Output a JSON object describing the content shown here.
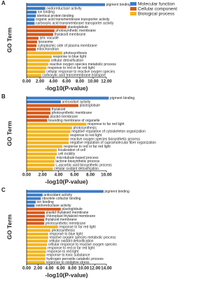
{
  "chart_data": [
    {
      "type": "bar",
      "panel": "A",
      "xlabel": "-log10(P-value)",
      "ylabel": "GO Term",
      "xlim": [
        0,
        12
      ],
      "xticks": [
        {
          "value": 0,
          "label": "0.00"
        },
        {
          "value": 2,
          "label": "2.00"
        },
        {
          "value": 4,
          "label": "4.00"
        },
        {
          "value": 6,
          "label": "6.00"
        },
        {
          "value": 8,
          "label": "8.00"
        },
        {
          "value": 10,
          "label": "10.00"
        },
        {
          "value": 12,
          "label": "12.00"
        }
      ],
      "legend": "top-right",
      "series": [
        {
          "name": "Molecular function",
          "color": "#3d7cc4",
          "categories": [
            "pigment binding",
            "oxidoreductase activity",
            "ion binding",
            "identical protein binding",
            "organic acid transmembrane transporter activity",
            "carboxylic acid transmembrane transporter activity"
          ],
          "values": [
            11.8,
            2.8,
            1.5,
            1.4,
            1.2,
            1.2
          ]
        },
        {
          "name": "Cellular component",
          "color": "#d95a1c",
          "categories": [
            "plastoglobule",
            "photosynthetic membrane",
            "thylakoid membrane",
            "lytic vacuole",
            "lysosome",
            "cytoplasmic side of plasma membrane",
            "mitochondrion"
          ],
          "values": [
            6.0,
            4.2,
            4.0,
            1.8,
            1.6,
            1.5,
            1.4
          ]
        },
        {
          "name": "Biological process",
          "color": "#f2b520",
          "categories": [
            "photosynthesis",
            "response to blue light",
            "cellular detoxification",
            "reactive oxygen species metabolic process",
            "response to red or far red light",
            "cellular response to reactive oxygen species",
            "carboxylic acid transmembrane transport"
          ],
          "values": [
            5.4,
            3.8,
            3.5,
            3.3,
            3.0,
            2.8,
            2.2
          ]
        }
      ]
    },
    {
      "type": "bar",
      "panel": "B",
      "xlabel": "-log10(P-value)",
      "ylabel": "GO Term",
      "xlim": [
        0,
        10
      ],
      "xticks": [
        {
          "value": 0,
          "label": "0.00"
        },
        {
          "value": 2,
          "label": "2.00"
        },
        {
          "value": 4,
          "label": "4.00"
        },
        {
          "value": 6,
          "label": "6.00"
        },
        {
          "value": 8,
          "label": "8.00"
        },
        {
          "value": 10,
          "label": "10.00"
        }
      ],
      "series": [
        {
          "color": "#3d7cc4",
          "categories": [
            "pigment binding",
            "antioxidant activity"
          ],
          "values": [
            10.3,
            4.3
          ]
        },
        {
          "color": "#d95a1c",
          "categories": [
            "plastoglobule",
            "thylakoid",
            "photosynthetic membrane",
            "plastid membrane",
            "bounding membrane of organelle"
          ],
          "values": [
            6.5,
            3.0,
            3.0,
            2.8,
            2.6
          ]
        },
        {
          "color": "#f2b520",
          "categories": [
            "response to far red light",
            "photosynthesis",
            "negative regulation of cytoskeleton organization",
            "response to red light",
            "reactive oxygen species biosynthetic process",
            "negative regulation of supramolecular fiber organization",
            "response to red or far red light",
            "localization of cell",
            "cell motility",
            "microtubule-based process",
            "lactone biosynthetic process",
            "L-ascorbic acid biosynthetic process",
            "cellular oxidant detoxification"
          ],
          "values": [
            7.5,
            5.7,
            5.5,
            5.3,
            5.3,
            5.3,
            4.5,
            3.8,
            3.8,
            3.6,
            3.5,
            3.5,
            3.3
          ]
        }
      ]
    },
    {
      "type": "bar",
      "panel": "C",
      "xlabel": "-log10(P-value)",
      "ylabel": "GO Term",
      "xlim": [
        0,
        14
      ],
      "xticks": [
        {
          "value": 0,
          "label": "0.00"
        },
        {
          "value": 2,
          "label": "2.00"
        },
        {
          "value": 4,
          "label": "4.00"
        },
        {
          "value": 6,
          "label": "6.00"
        },
        {
          "value": 8,
          "label": "8.00"
        },
        {
          "value": 10,
          "label": "10.00"
        },
        {
          "value": 12,
          "label": "12.00"
        },
        {
          "value": 14,
          "label": "14.00"
        }
      ],
      "series": [
        {
          "color": "#3d7cc4",
          "categories": [
            "pigment binding",
            "antioxidant activity",
            "obsolete cofactor binding",
            "ion binding",
            "oxidoreductase activity"
          ],
          "values": [
            13.5,
            2.8,
            2.5,
            1.6,
            1.4
          ]
        },
        {
          "color": "#d95a1c",
          "categories": [
            "plastoglobule",
            "plastid thylakoid membrane",
            "chloroplast thylakoid membrane",
            "thylakoid membrane",
            "photosynthetic membrane"
          ],
          "values": [
            6.0,
            3.2,
            3.2,
            3.1,
            3.1
          ]
        },
        {
          "color": "#f2b520",
          "categories": [
            "response to far red light",
            "photosynthesis",
            "response to blue light",
            "reactive oxygen species metabolic process",
            "cellular oxidant detoxification",
            "cellular response to reactive oxygen species",
            "response to red or far red light",
            "response to red light",
            "response to toxic substance",
            "hydrogen peroxide catabolic process",
            "response to oxidative stress"
          ],
          "values": [
            5.5,
            4.2,
            3.8,
            3.8,
            3.7,
            3.6,
            3.5,
            3.4,
            3.3,
            3.3,
            3.2
          ]
        }
      ]
    }
  ]
}
